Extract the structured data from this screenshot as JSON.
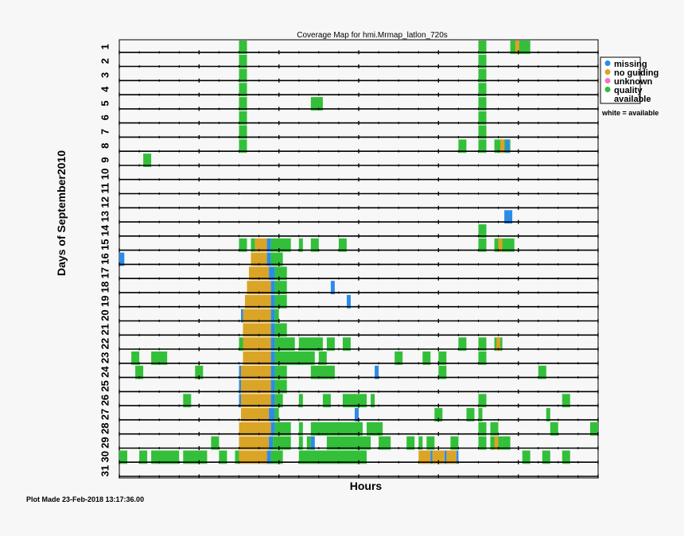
{
  "chart_data": {
    "type": "heatmap",
    "title": "Coverage Map for hmi.Mrmap_latlon_720s",
    "xlabel": "Hours",
    "ylabel": "Days of September2010",
    "xlim": [
      0,
      24
    ],
    "days": [
      1,
      2,
      3,
      4,
      5,
      6,
      7,
      8,
      9,
      10,
      11,
      12,
      13,
      14,
      15,
      16,
      17,
      18,
      19,
      20,
      21,
      22,
      23,
      24,
      25,
      26,
      27,
      28,
      29,
      30,
      31
    ],
    "categories": {
      "missing": "#2b8ce8",
      "no guiding": "#daa426",
      "unknown": "#ee77bb",
      "quality available": "#33bf3a"
    },
    "legend": [
      {
        "label": "missing",
        "color": "#2b8ce8"
      },
      {
        "label": "no guiding",
        "color": "#daa426"
      },
      {
        "label": "unknown",
        "color": "#ee77bb"
      },
      {
        "label": "quality",
        "label2": "available",
        "color": "#33bf3a"
      }
    ],
    "legend_note": "white = available",
    "segments": [
      {
        "day": 1,
        "start": 6.0,
        "end": 6.4,
        "type": "quality available"
      },
      {
        "day": 1,
        "start": 18.0,
        "end": 18.4,
        "type": "quality available"
      },
      {
        "day": 1,
        "start": 19.6,
        "end": 20.6,
        "type": "quality available"
      },
      {
        "day": 1,
        "start": 19.85,
        "end": 20.05,
        "type": "no guiding"
      },
      {
        "day": 2,
        "start": 6.0,
        "end": 6.4,
        "type": "quality available"
      },
      {
        "day": 2,
        "start": 18.0,
        "end": 18.4,
        "type": "quality available"
      },
      {
        "day": 3,
        "start": 6.0,
        "end": 6.4,
        "type": "quality available"
      },
      {
        "day": 3,
        "start": 18.0,
        "end": 18.4,
        "type": "quality available"
      },
      {
        "day": 4,
        "start": 6.0,
        "end": 6.4,
        "type": "quality available"
      },
      {
        "day": 4,
        "start": 18.0,
        "end": 18.4,
        "type": "quality available"
      },
      {
        "day": 5,
        "start": 6.0,
        "end": 6.4,
        "type": "quality available"
      },
      {
        "day": 5,
        "start": 9.6,
        "end": 10.2,
        "type": "quality available"
      },
      {
        "day": 5,
        "start": 18.0,
        "end": 18.4,
        "type": "quality available"
      },
      {
        "day": 6,
        "start": 6.0,
        "end": 6.4,
        "type": "quality available"
      },
      {
        "day": 6,
        "start": 18.0,
        "end": 18.4,
        "type": "quality available"
      },
      {
        "day": 7,
        "start": 6.0,
        "end": 6.4,
        "type": "quality available"
      },
      {
        "day": 7,
        "start": 18.0,
        "end": 18.4,
        "type": "quality available"
      },
      {
        "day": 8,
        "start": 6.0,
        "end": 6.4,
        "type": "quality available"
      },
      {
        "day": 8,
        "start": 17.0,
        "end": 17.4,
        "type": "quality available"
      },
      {
        "day": 8,
        "start": 18.0,
        "end": 18.4,
        "type": "quality available"
      },
      {
        "day": 8,
        "start": 18.8,
        "end": 19.6,
        "type": "quality available"
      },
      {
        "day": 8,
        "start": 19.1,
        "end": 19.3,
        "type": "no guiding"
      },
      {
        "day": 8,
        "start": 19.35,
        "end": 19.55,
        "type": "missing"
      },
      {
        "day": 9,
        "start": 1.2,
        "end": 1.6,
        "type": "quality available"
      },
      {
        "day": 13,
        "start": 19.3,
        "end": 19.7,
        "type": "missing"
      },
      {
        "day": 14,
        "start": 18.0,
        "end": 18.4,
        "type": "quality available"
      },
      {
        "day": 15,
        "start": 6.0,
        "end": 6.4,
        "type": "quality available"
      },
      {
        "day": 15,
        "start": 6.6,
        "end": 6.8,
        "type": "quality available"
      },
      {
        "day": 15,
        "start": 6.8,
        "end": 7.4,
        "type": "no guiding"
      },
      {
        "day": 15,
        "start": 7.4,
        "end": 7.6,
        "type": "missing"
      },
      {
        "day": 15,
        "start": 7.6,
        "end": 8.6,
        "type": "quality available"
      },
      {
        "day": 15,
        "start": 9.0,
        "end": 9.2,
        "type": "quality available"
      },
      {
        "day": 15,
        "start": 9.6,
        "end": 10.0,
        "type": "quality available"
      },
      {
        "day": 15,
        "start": 11.0,
        "end": 11.4,
        "type": "quality available"
      },
      {
        "day": 15,
        "start": 18.0,
        "end": 18.4,
        "type": "quality available"
      },
      {
        "day": 15,
        "start": 18.8,
        "end": 19.8,
        "type": "quality available"
      },
      {
        "day": 15,
        "start": 19.0,
        "end": 19.2,
        "type": "no guiding"
      },
      {
        "day": 16,
        "start": 0.0,
        "end": 0.25,
        "type": "missing"
      },
      {
        "day": 16,
        "start": 6.6,
        "end": 7.4,
        "type": "no guiding"
      },
      {
        "day": 16,
        "start": 7.4,
        "end": 7.6,
        "type": "missing"
      },
      {
        "day": 16,
        "start": 7.6,
        "end": 8.2,
        "type": "quality available"
      },
      {
        "day": 17,
        "start": 6.5,
        "end": 7.5,
        "type": "no guiding"
      },
      {
        "day": 17,
        "start": 7.5,
        "end": 7.8,
        "type": "missing"
      },
      {
        "day": 17,
        "start": 7.8,
        "end": 8.4,
        "type": "quality available"
      },
      {
        "day": 18,
        "start": 6.4,
        "end": 7.6,
        "type": "no guiding"
      },
      {
        "day": 18,
        "start": 7.6,
        "end": 7.8,
        "type": "missing"
      },
      {
        "day": 18,
        "start": 7.8,
        "end": 8.4,
        "type": "quality available"
      },
      {
        "day": 18,
        "start": 10.6,
        "end": 10.8,
        "type": "missing"
      },
      {
        "day": 19,
        "start": 6.3,
        "end": 7.6,
        "type": "no guiding"
      },
      {
        "day": 19,
        "start": 7.6,
        "end": 7.8,
        "type": "missing"
      },
      {
        "day": 19,
        "start": 7.8,
        "end": 8.4,
        "type": "quality available"
      },
      {
        "day": 19,
        "start": 11.4,
        "end": 11.6,
        "type": "missing"
      },
      {
        "day": 20,
        "start": 6.1,
        "end": 6.2,
        "type": "missing"
      },
      {
        "day": 20,
        "start": 6.2,
        "end": 7.6,
        "type": "no guiding"
      },
      {
        "day": 20,
        "start": 7.6,
        "end": 7.8,
        "type": "missing"
      },
      {
        "day": 20,
        "start": 7.8,
        "end": 8.0,
        "type": "quality available"
      },
      {
        "day": 21,
        "start": 6.2,
        "end": 7.6,
        "type": "no guiding"
      },
      {
        "day": 21,
        "start": 7.6,
        "end": 7.8,
        "type": "missing"
      },
      {
        "day": 21,
        "start": 7.8,
        "end": 8.4,
        "type": "quality available"
      },
      {
        "day": 22,
        "start": 6.0,
        "end": 6.2,
        "type": "quality available"
      },
      {
        "day": 22,
        "start": 6.2,
        "end": 7.6,
        "type": "no guiding"
      },
      {
        "day": 22,
        "start": 7.6,
        "end": 7.8,
        "type": "missing"
      },
      {
        "day": 22,
        "start": 7.8,
        "end": 8.8,
        "type": "quality available"
      },
      {
        "day": 22,
        "start": 9.0,
        "end": 10.2,
        "type": "quality available"
      },
      {
        "day": 22,
        "start": 10.4,
        "end": 10.8,
        "type": "quality available"
      },
      {
        "day": 22,
        "start": 11.2,
        "end": 11.6,
        "type": "quality available"
      },
      {
        "day": 22,
        "start": 17.0,
        "end": 17.4,
        "type": "quality available"
      },
      {
        "day": 22,
        "start": 18.0,
        "end": 18.4,
        "type": "quality available"
      },
      {
        "day": 22,
        "start": 18.8,
        "end": 19.2,
        "type": "quality available"
      },
      {
        "day": 22,
        "start": 18.9,
        "end": 19.1,
        "type": "no guiding"
      },
      {
        "day": 23,
        "start": 0.6,
        "end": 1.0,
        "type": "quality available"
      },
      {
        "day": 23,
        "start": 1.6,
        "end": 2.4,
        "type": "quality available"
      },
      {
        "day": 23,
        "start": 6.2,
        "end": 7.6,
        "type": "no guiding"
      },
      {
        "day": 23,
        "start": 7.6,
        "end": 7.8,
        "type": "missing"
      },
      {
        "day": 23,
        "start": 7.8,
        "end": 9.8,
        "type": "quality available"
      },
      {
        "day": 23,
        "start": 10.0,
        "end": 10.4,
        "type": "quality available"
      },
      {
        "day": 23,
        "start": 13.8,
        "end": 14.2,
        "type": "quality available"
      },
      {
        "day": 23,
        "start": 15.2,
        "end": 15.6,
        "type": "quality available"
      },
      {
        "day": 23,
        "start": 16.0,
        "end": 16.4,
        "type": "quality available"
      },
      {
        "day": 23,
        "start": 18.0,
        "end": 18.4,
        "type": "quality available"
      },
      {
        "day": 24,
        "start": 0.8,
        "end": 1.2,
        "type": "quality available"
      },
      {
        "day": 24,
        "start": 3.8,
        "end": 4.2,
        "type": "quality available"
      },
      {
        "day": 24,
        "start": 6.0,
        "end": 6.1,
        "type": "missing"
      },
      {
        "day": 24,
        "start": 6.1,
        "end": 7.6,
        "type": "no guiding"
      },
      {
        "day": 24,
        "start": 7.6,
        "end": 7.8,
        "type": "missing"
      },
      {
        "day": 24,
        "start": 7.8,
        "end": 8.4,
        "type": "quality available"
      },
      {
        "day": 24,
        "start": 9.6,
        "end": 10.8,
        "type": "quality available"
      },
      {
        "day": 24,
        "start": 12.8,
        "end": 13.0,
        "type": "missing"
      },
      {
        "day": 24,
        "start": 16.0,
        "end": 16.4,
        "type": "quality available"
      },
      {
        "day": 24,
        "start": 21.0,
        "end": 21.4,
        "type": "quality available"
      },
      {
        "day": 25,
        "start": 6.0,
        "end": 6.1,
        "type": "missing"
      },
      {
        "day": 25,
        "start": 6.1,
        "end": 7.6,
        "type": "no guiding"
      },
      {
        "day": 25,
        "start": 7.6,
        "end": 7.8,
        "type": "missing"
      },
      {
        "day": 25,
        "start": 7.8,
        "end": 8.4,
        "type": "quality available"
      },
      {
        "day": 26,
        "start": 3.2,
        "end": 3.6,
        "type": "quality available"
      },
      {
        "day": 26,
        "start": 6.0,
        "end": 6.1,
        "type": "missing"
      },
      {
        "day": 26,
        "start": 6.1,
        "end": 7.6,
        "type": "no guiding"
      },
      {
        "day": 26,
        "start": 7.6,
        "end": 7.8,
        "type": "missing"
      },
      {
        "day": 26,
        "start": 7.8,
        "end": 8.2,
        "type": "quality available"
      },
      {
        "day": 26,
        "start": 9.0,
        "end": 9.2,
        "type": "quality available"
      },
      {
        "day": 26,
        "start": 10.2,
        "end": 10.6,
        "type": "quality available"
      },
      {
        "day": 26,
        "start": 11.2,
        "end": 12.4,
        "type": "quality available"
      },
      {
        "day": 26,
        "start": 12.6,
        "end": 12.8,
        "type": "quality available"
      },
      {
        "day": 26,
        "start": 18.0,
        "end": 18.4,
        "type": "quality available"
      },
      {
        "day": 26,
        "start": 22.2,
        "end": 22.6,
        "type": "quality available"
      },
      {
        "day": 27,
        "start": 6.1,
        "end": 7.5,
        "type": "no guiding"
      },
      {
        "day": 27,
        "start": 7.5,
        "end": 7.8,
        "type": "missing"
      },
      {
        "day": 27,
        "start": 7.8,
        "end": 8.0,
        "type": "quality available"
      },
      {
        "day": 27,
        "start": 11.8,
        "end": 12.0,
        "type": "missing"
      },
      {
        "day": 27,
        "start": 15.8,
        "end": 16.2,
        "type": "quality available"
      },
      {
        "day": 27,
        "start": 17.4,
        "end": 17.8,
        "type": "quality available"
      },
      {
        "day": 27,
        "start": 18.0,
        "end": 18.2,
        "type": "quality available"
      },
      {
        "day": 27,
        "start": 21.4,
        "end": 21.6,
        "type": "quality available"
      },
      {
        "day": 28,
        "start": 6.0,
        "end": 7.6,
        "type": "no guiding"
      },
      {
        "day": 28,
        "start": 7.6,
        "end": 7.8,
        "type": "missing"
      },
      {
        "day": 28,
        "start": 7.8,
        "end": 8.6,
        "type": "quality available"
      },
      {
        "day": 28,
        "start": 9.0,
        "end": 9.2,
        "type": "quality available"
      },
      {
        "day": 28,
        "start": 9.6,
        "end": 12.2,
        "type": "quality available"
      },
      {
        "day": 28,
        "start": 12.4,
        "end": 13.2,
        "type": "quality available"
      },
      {
        "day": 28,
        "start": 18.0,
        "end": 18.4,
        "type": "quality available"
      },
      {
        "day": 28,
        "start": 18.6,
        "end": 19.0,
        "type": "quality available"
      },
      {
        "day": 28,
        "start": 21.6,
        "end": 22.0,
        "type": "quality available"
      },
      {
        "day": 28,
        "start": 23.6,
        "end": 24.0,
        "type": "quality available"
      },
      {
        "day": 29,
        "start": 4.6,
        "end": 5.0,
        "type": "quality available"
      },
      {
        "day": 29,
        "start": 6.0,
        "end": 7.5,
        "type": "no guiding"
      },
      {
        "day": 29,
        "start": 7.5,
        "end": 7.7,
        "type": "missing"
      },
      {
        "day": 29,
        "start": 7.7,
        "end": 8.6,
        "type": "quality available"
      },
      {
        "day": 29,
        "start": 9.0,
        "end": 9.2,
        "type": "quality available"
      },
      {
        "day": 29,
        "start": 9.4,
        "end": 9.6,
        "type": "quality available"
      },
      {
        "day": 29,
        "start": 9.6,
        "end": 9.8,
        "type": "missing"
      },
      {
        "day": 29,
        "start": 10.4,
        "end": 12.6,
        "type": "quality available"
      },
      {
        "day": 29,
        "start": 13.0,
        "end": 13.6,
        "type": "quality available"
      },
      {
        "day": 29,
        "start": 14.4,
        "end": 14.8,
        "type": "quality available"
      },
      {
        "day": 29,
        "start": 15.0,
        "end": 15.2,
        "type": "quality available"
      },
      {
        "day": 29,
        "start": 15.4,
        "end": 15.8,
        "type": "quality available"
      },
      {
        "day": 29,
        "start": 16.6,
        "end": 17.0,
        "type": "quality available"
      },
      {
        "day": 29,
        "start": 18.0,
        "end": 18.4,
        "type": "quality available"
      },
      {
        "day": 29,
        "start": 18.6,
        "end": 19.2,
        "type": "quality available"
      },
      {
        "day": 29,
        "start": 18.8,
        "end": 19.0,
        "type": "no guiding"
      },
      {
        "day": 29,
        "start": 19.2,
        "end": 19.6,
        "type": "quality available"
      },
      {
        "day": 30,
        "start": 0.0,
        "end": 0.4,
        "type": "quality available"
      },
      {
        "day": 30,
        "start": 1.0,
        "end": 1.4,
        "type": "quality available"
      },
      {
        "day": 30,
        "start": 1.6,
        "end": 3.0,
        "type": "quality available"
      },
      {
        "day": 30,
        "start": 3.2,
        "end": 4.4,
        "type": "quality available"
      },
      {
        "day": 30,
        "start": 5.0,
        "end": 5.4,
        "type": "quality available"
      },
      {
        "day": 30,
        "start": 5.8,
        "end": 6.0,
        "type": "quality available"
      },
      {
        "day": 30,
        "start": 6.0,
        "end": 7.4,
        "type": "no guiding"
      },
      {
        "day": 30,
        "start": 7.4,
        "end": 7.6,
        "type": "missing"
      },
      {
        "day": 30,
        "start": 7.6,
        "end": 8.2,
        "type": "quality available"
      },
      {
        "day": 30,
        "start": 9.0,
        "end": 12.0,
        "type": "quality available"
      },
      {
        "day": 30,
        "start": 12.0,
        "end": 12.4,
        "type": "quality available"
      },
      {
        "day": 30,
        "start": 15.0,
        "end": 15.6,
        "type": "no guiding"
      },
      {
        "day": 30,
        "start": 15.6,
        "end": 15.7,
        "type": "missing"
      },
      {
        "day": 30,
        "start": 15.7,
        "end": 16.3,
        "type": "no guiding"
      },
      {
        "day": 30,
        "start": 16.3,
        "end": 16.4,
        "type": "missing"
      },
      {
        "day": 30,
        "start": 16.4,
        "end": 16.9,
        "type": "no guiding"
      },
      {
        "day": 30,
        "start": 16.9,
        "end": 17.0,
        "type": "missing"
      },
      {
        "day": 30,
        "start": 20.2,
        "end": 20.6,
        "type": "quality available"
      },
      {
        "day": 30,
        "start": 21.2,
        "end": 21.6,
        "type": "quality available"
      },
      {
        "day": 30,
        "start": 22.2,
        "end": 22.6,
        "type": "quality available"
      }
    ]
  },
  "footer": {
    "plot_made": "Plot Made 23-Feb-2018 13:17:36.00"
  }
}
